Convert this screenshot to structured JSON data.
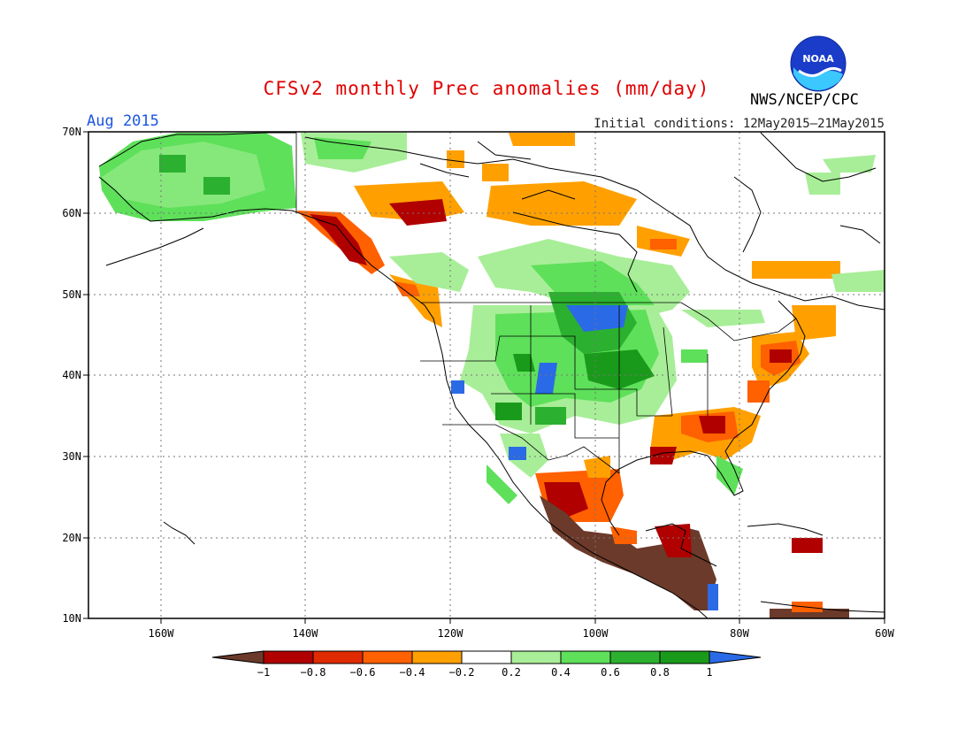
{
  "title": "CFSv2 monthly Prec anomalies (mm/day)",
  "period": "Aug 2015",
  "initial_conditions": "Initial conditions: 12May2015–21May2015",
  "agency": "NWS/NCEP/CPC",
  "logo_text": "NOAA",
  "lat_labels": [
    "70N",
    "60N",
    "50N",
    "40N",
    "30N",
    "20N",
    "10N"
  ],
  "lon_labels": [
    "160W",
    "140W",
    "120W",
    "100W",
    "80W",
    "60W"
  ],
  "colorbar": {
    "labels": [
      "−1",
      "−0.8",
      "−0.6",
      "−0.4",
      "−0.2",
      "0.2",
      "0.4",
      "0.6",
      "0.8",
      "1"
    ],
    "colors": [
      "#6b3a2a",
      "#b00000",
      "#e02a00",
      "#ff6000",
      "#ffa000",
      "#ffffff",
      "#a8ee98",
      "#5ee05a",
      "#2cb030",
      "#1a9a1a",
      "#2a6ae6"
    ]
  }
}
